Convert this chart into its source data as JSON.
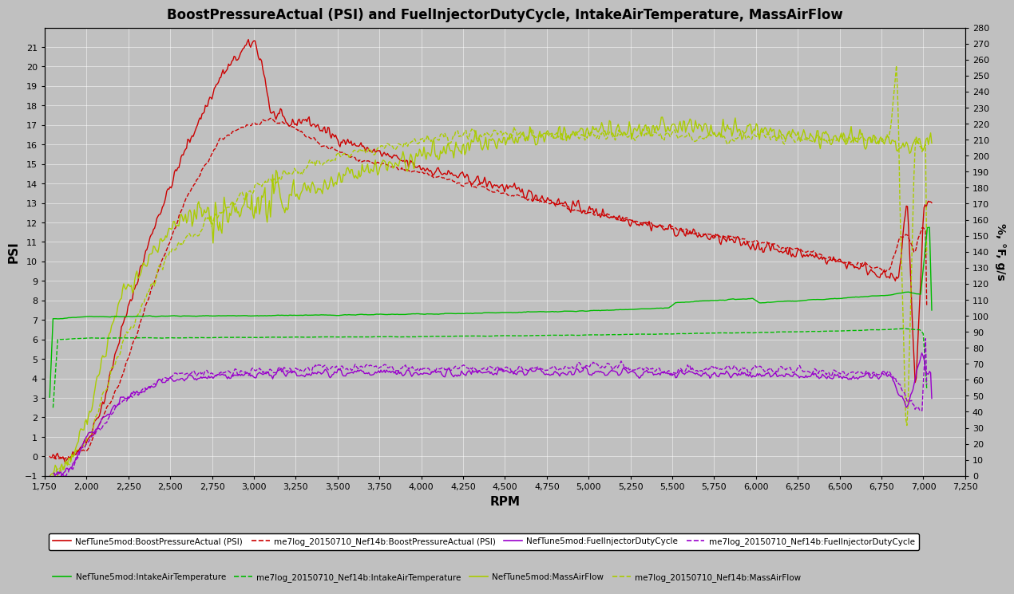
{
  "title": "BoostPressureActual (PSI) and FuelInjectorDutyCycle, IntakeAirTemperature, MassAirFlow",
  "xlabel": "RPM",
  "ylabel_left": "PSI",
  "ylabel_right": "%, °F, g/s",
  "xlim": [
    1750,
    7250
  ],
  "ylim_left": [
    -1,
    22
  ],
  "ylim_right": [
    0,
    280
  ],
  "xticks": [
    1750,
    2000,
    2250,
    2500,
    2750,
    3000,
    3250,
    3500,
    3750,
    4000,
    4250,
    4500,
    4750,
    5000,
    5250,
    5500,
    5750,
    6000,
    6250,
    6500,
    6750,
    7000,
    7250
  ],
  "yticks_left": [
    -1,
    0,
    1,
    2,
    3,
    4,
    5,
    6,
    7,
    8,
    9,
    10,
    11,
    12,
    13,
    14,
    15,
    16,
    17,
    18,
    19,
    20,
    21
  ],
  "yticks_right": [
    0,
    10,
    20,
    30,
    40,
    50,
    60,
    70,
    80,
    90,
    100,
    110,
    120,
    130,
    140,
    150,
    160,
    170,
    180,
    190,
    200,
    210,
    220,
    230,
    240,
    250,
    260,
    270,
    280
  ],
  "bg_color": "#c0c0c0",
  "grid_color": "#ffffff",
  "legend_labels": [
    "NefTune5mod:BoostPressureActual (PSI)",
    "me7log_20150710_Nef14b:BoostPressureActual (PSI)",
    "NefTune5mod:FuelInjectorDutyCycle",
    "me7log_20150710_Nef14b:FuelInjectorDutyCycle",
    "NefTune5mod:IntakeAirTemperature",
    "me7log_20150710_Nef14b:IntakeAirTemperature",
    "NefTune5mod:MassAirFlow",
    "me7log_20150710_Nef14b:MassAirFlow"
  ],
  "red_color": "#cc0000",
  "purple_color": "#9900cc",
  "green_color": "#00bb00",
  "lime_color": "#aacc00"
}
